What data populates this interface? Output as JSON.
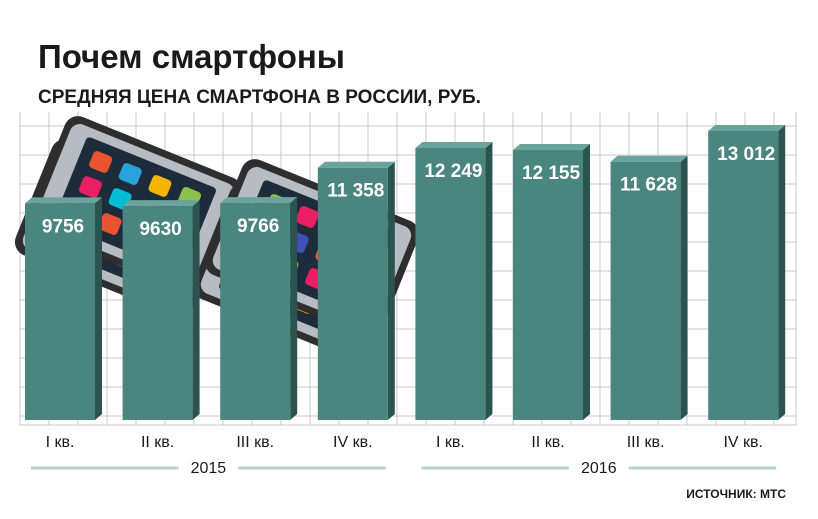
{
  "colors": {
    "bar_front": "#4a857f",
    "bar_side": "#2b5450",
    "bar_top": "#6aa49d",
    "grid": "#c9c9c9",
    "year_line": "#b9d1ce"
  },
  "chart_data": {
    "type": "bar",
    "title": "Почем смартфоны",
    "subtitle": "СРЕДНЯЯ ЦЕНА СМАРТФОНА В РОССИИ, РУБ.",
    "categories": [
      "I кв.",
      "II кв.",
      "III кв.",
      "IV кв.",
      "I кв.",
      "II кв.",
      "III кв.",
      "IV кв."
    ],
    "values": [
      9756,
      9630,
      9766,
      11358,
      12249,
      12155,
      11628,
      13012
    ],
    "value_labels": [
      "9756",
      "9630",
      "9766",
      "11 358",
      "12 249",
      "12 155",
      "11 628",
      "13 012"
    ],
    "groups": [
      {
        "label": "2015",
        "span": [
          0,
          3
        ]
      },
      {
        "label": "2016",
        "span": [
          4,
          7
        ]
      }
    ],
    "ylim": [
      0,
      14500
    ],
    "grid": true,
    "source": "ИСТОЧНИК: МТС"
  }
}
